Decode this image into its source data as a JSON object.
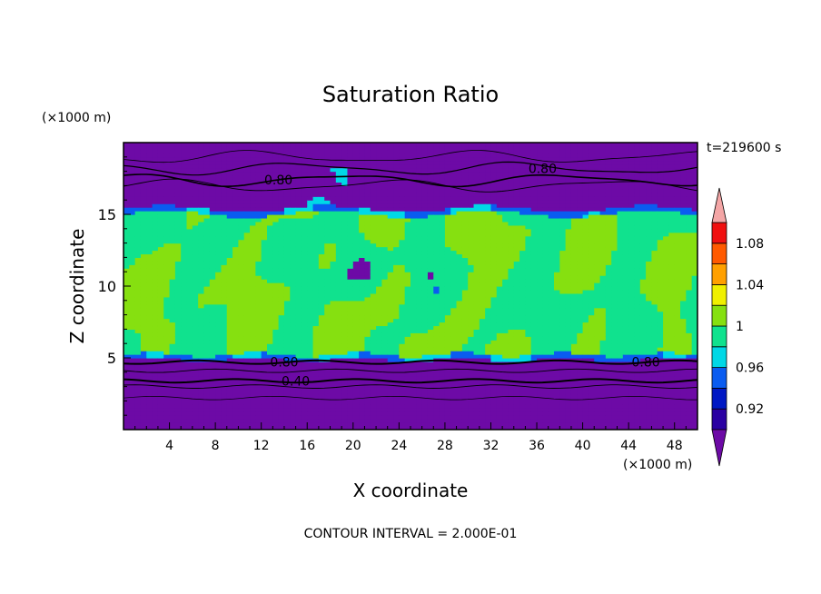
{
  "chart_data": {
    "type": "heatmap",
    "title": "Saturation Ratio",
    "xlabel": "X coordinate",
    "ylabel": "Z coordinate",
    "x_unit": "(×1000 m)",
    "y_unit": "(×1000 m)",
    "time_label": "t=219600 s",
    "footer": "CONTOUR INTERVAL = 2.000E-01",
    "xlim": [
      0,
      50
    ],
    "ylim": [
      0,
      20
    ],
    "x_ticks": [
      4,
      8,
      12,
      16,
      20,
      24,
      28,
      32,
      36,
      40,
      44,
      48
    ],
    "y_ticks": [
      5,
      10,
      15
    ],
    "colorbar": {
      "colors": [
        "#6d0aa6",
        "#2a00a2",
        "#0018c4",
        "#0a5cf0",
        "#00d8e6",
        "#10e28e",
        "#86e010",
        "#f0f000",
        "#ffa000",
        "#ff5a00",
        "#f01010",
        "#f4a6a6"
      ],
      "boundaries": [
        0.9,
        0.92,
        0.94,
        0.96,
        0.98,
        1.0,
        1.02,
        1.04,
        1.06,
        1.08,
        1.1
      ],
      "labels": [
        {
          "value": 0.92,
          "text": "0.92"
        },
        {
          "value": 0.96,
          "text": "0.96"
        },
        {
          "value": 1.0,
          "text": "1"
        },
        {
          "value": 1.04,
          "text": "1.04"
        },
        {
          "value": 1.08,
          "text": "1.08"
        }
      ]
    },
    "regions": {
      "lower_dry_layer": {
        "z_range": [
          0,
          5
        ],
        "level": "below 0.90"
      },
      "moist_layer": {
        "z_range": [
          5,
          15.5
        ],
        "dominant_levels": [
          0.98,
          1.0
        ]
      },
      "upper_dry_layer": {
        "z_range": [
          15.5,
          20
        ],
        "level": "below 0.90"
      }
    },
    "contour_lines": [
      {
        "level": 0.4,
        "z": 3.4,
        "label": "0.40",
        "label_x": 15
      },
      {
        "level": 0.8,
        "z": 4.7,
        "label": "0.80",
        "label_x": 14
      },
      {
        "level": 0.8,
        "z": 4.7,
        "label": "0.80",
        "label_x": 45.5
      },
      {
        "level": 0.8,
        "z": 17.4,
        "label": "0.80",
        "label_x": 13.5
      },
      {
        "level": 0.8,
        "z": 18.2,
        "label": "0.80",
        "label_x": 36.5
      }
    ]
  }
}
